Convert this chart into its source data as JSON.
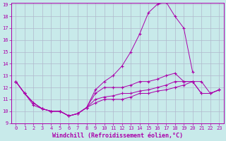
{
  "xlabel": "Windchill (Refroidissement éolien,°C)",
  "x": [
    0,
    1,
    2,
    3,
    4,
    5,
    6,
    7,
    8,
    9,
    10,
    11,
    12,
    13,
    14,
    15,
    16,
    17,
    18,
    19,
    20,
    21,
    22,
    23
  ],
  "line1": [
    12.5,
    11.5,
    10.7,
    10.2,
    10.0,
    10.0,
    9.6,
    9.8,
    10.3,
    11.8,
    12.5,
    13.0,
    13.8,
    15.0,
    16.5,
    18.3,
    19.0,
    19.2,
    18.0,
    17.0,
    13.3,
    null,
    null,
    null
  ],
  "line2": [
    12.5,
    11.5,
    10.7,
    10.2,
    10.0,
    10.0,
    9.6,
    9.8,
    10.3,
    11.5,
    12.0,
    12.0,
    12.0,
    12.2,
    12.5,
    12.5,
    12.7,
    13.0,
    13.2,
    12.5,
    12.5,
    12.5,
    11.5,
    11.8
  ],
  "line3": [
    12.5,
    11.5,
    10.7,
    10.2,
    10.0,
    10.0,
    9.6,
    9.8,
    10.3,
    11.0,
    11.2,
    11.3,
    11.5,
    11.5,
    11.7,
    11.8,
    12.0,
    12.2,
    12.5,
    12.5,
    12.5,
    11.5,
    11.5,
    11.8
  ],
  "line4": [
    12.5,
    11.5,
    10.5,
    10.2,
    10.0,
    10.0,
    9.6,
    9.8,
    10.3,
    10.7,
    11.0,
    11.0,
    11.0,
    11.2,
    11.5,
    11.5,
    11.7,
    11.8,
    12.0,
    12.2,
    12.5,
    11.5,
    11.5,
    11.8
  ],
  "line_color": "#aa00aa",
  "bg_color": "#c8eaea",
  "grid_color": "#b0b8cc",
  "ylim": [
    9,
    19
  ],
  "xlim_min": -0.5,
  "xlim_max": 23.5,
  "yticks": [
    9,
    10,
    11,
    12,
    13,
    14,
    15,
    16,
    17,
    18,
    19
  ],
  "xticks": [
    0,
    1,
    2,
    3,
    4,
    5,
    6,
    7,
    8,
    9,
    10,
    11,
    12,
    13,
    14,
    15,
    16,
    17,
    18,
    19,
    20,
    21,
    22,
    23
  ],
  "tick_fontsize": 5.0,
  "label_fontsize": 6.0,
  "marker": "+",
  "markersize": 3.5,
  "linewidth": 0.7
}
